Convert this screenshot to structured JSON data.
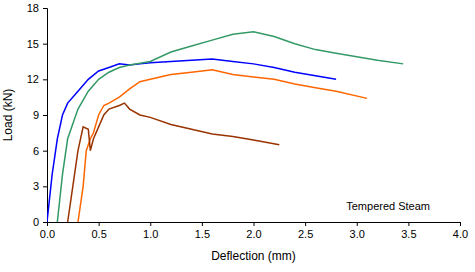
{
  "chart_data": {
    "type": "line",
    "x_label": "Deflection (mm)",
    "y_label": "Load (kN)",
    "annotation": "Tempered Steam",
    "xlim": [
      0,
      4
    ],
    "ylim": [
      0,
      18
    ],
    "xticks": [
      {
        "value": 0,
        "label": "0.0"
      },
      {
        "value": 0.5,
        "label": "0.5"
      },
      {
        "value": 1,
        "label": "1.0"
      },
      {
        "value": 1.5,
        "label": "1.5"
      },
      {
        "value": 2,
        "label": "2.0"
      },
      {
        "value": 2.5,
        "label": "2.5"
      },
      {
        "value": 3,
        "label": "3.0"
      },
      {
        "value": 3.5,
        "label": "3.5"
      },
      {
        "value": 4,
        "label": "4.0"
      }
    ],
    "yticks": [
      0,
      3,
      6,
      9,
      12,
      15,
      18
    ],
    "grid": false,
    "series": [
      {
        "color": "#0000ff",
        "x": [
          0,
          0.05,
          0.1,
          0.15,
          0.2,
          0.3,
          0.4,
          0.5,
          0.6,
          0.7,
          0.8,
          0.9,
          1.0,
          1.2,
          1.4,
          1.6,
          1.8,
          2.0,
          2.2,
          2.4,
          2.6,
          2.8
        ],
        "values": [
          0,
          4,
          7,
          9,
          10,
          11,
          12,
          12.7,
          13,
          13.3,
          13.2,
          13.3,
          13.4,
          13.5,
          13.6,
          13.7,
          13.5,
          13.3,
          13,
          12.6,
          12.3,
          12.0
        ]
      },
      {
        "color": "#339966",
        "x": [
          0.1,
          0.15,
          0.2,
          0.3,
          0.4,
          0.5,
          0.6,
          0.7,
          0.8,
          1.0,
          1.2,
          1.4,
          1.6,
          1.8,
          2.0,
          2.2,
          2.4,
          2.6,
          2.8,
          3.0,
          3.2,
          3.45
        ],
        "values": [
          0,
          4,
          7,
          9.5,
          11,
          12,
          12.6,
          13,
          13.2,
          13.5,
          14.3,
          14.8,
          15.3,
          15.8,
          16.0,
          15.6,
          15,
          14.5,
          14.2,
          13.9,
          13.6,
          13.3
        ]
      },
      {
        "color": "#ff6600",
        "x": [
          0.3,
          0.35,
          0.38,
          0.42,
          0.45,
          0.5,
          0.55,
          0.6,
          0.7,
          0.8,
          0.9,
          1.0,
          1.2,
          1.4,
          1.6,
          1.8,
          2.0,
          2.2,
          2.4,
          2.6,
          2.8,
          3.1
        ],
        "values": [
          0,
          3,
          6,
          7,
          7.5,
          9,
          9.8,
          10,
          10.5,
          11.2,
          11.8,
          12,
          12.4,
          12.6,
          12.8,
          12.4,
          12.2,
          12,
          11.6,
          11.3,
          11,
          10.4
        ]
      },
      {
        "color": "#993300",
        "x": [
          0.2,
          0.25,
          0.3,
          0.35,
          0.4,
          0.42,
          0.45,
          0.5,
          0.55,
          0.6,
          0.7,
          0.75,
          0.8,
          0.9,
          1.0,
          1.2,
          1.4,
          1.6,
          1.8,
          2.0,
          2.25
        ],
        "values": [
          0,
          3,
          6,
          8,
          7.8,
          6,
          7,
          8,
          9,
          9.5,
          9.8,
          10,
          9.5,
          9,
          8.8,
          8.2,
          7.8,
          7.4,
          7.2,
          6.9,
          6.5
        ]
      }
    ]
  }
}
